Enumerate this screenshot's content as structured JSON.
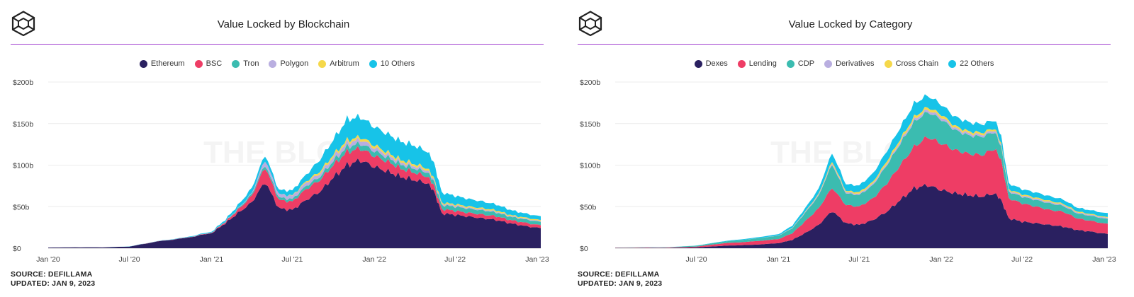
{
  "panels": [
    {
      "title": "Value Locked by Blockchain",
      "watermark": "THE BLOCK",
      "source": "SOURCE: DEFILLAMA",
      "updated": "UPDATED: JAN 9, 2023",
      "logo_icon": "the-block-cube-icon",
      "chart_data": {
        "type": "area",
        "stacked": true,
        "title": "Value Locked by Blockchain",
        "ylabel": "",
        "xlabel": "",
        "ylim": [
          0,
          200
        ],
        "y_ticks": [
          "$0",
          "$50b",
          "$100b",
          "$150b",
          "$200b"
        ],
        "y_tick_values": [
          0,
          50,
          100,
          150,
          200
        ],
        "x_range": [
          "2020-01-01",
          "2023-01-09"
        ],
        "x_ticks": [
          "Jan '20",
          "Jul '20",
          "Jan '21",
          "Jul '21",
          "Jan '22",
          "Jul '22",
          "Jan '23"
        ],
        "x_tick_dates": [
          "2020-01-01",
          "2020-07-01",
          "2021-01-01",
          "2021-07-01",
          "2022-01-01",
          "2022-07-01",
          "2023-01-01"
        ],
        "grid": true,
        "legend_position": "top-center",
        "x": [
          "2020-01-01",
          "2020-03-01",
          "2020-05-01",
          "2020-07-01",
          "2020-09-01",
          "2020-11-01",
          "2021-01-01",
          "2021-02-01",
          "2021-03-01",
          "2021-04-01",
          "2021-05-01",
          "2021-06-01",
          "2021-07-01",
          "2021-08-01",
          "2021-09-01",
          "2021-10-01",
          "2021-11-01",
          "2021-12-01",
          "2022-01-01",
          "2022-02-01",
          "2022-03-01",
          "2022-04-01",
          "2022-05-01",
          "2022-05-15",
          "2022-06-01",
          "2022-07-01",
          "2022-08-01",
          "2022-09-01",
          "2022-10-01",
          "2022-11-01",
          "2022-12-01",
          "2023-01-09"
        ],
        "series": [
          {
            "name": "Ethereum",
            "color": "#2a2060",
            "values": [
              0.8,
              1,
              1,
              2,
              8,
              12,
              18,
              30,
              42,
              55,
              80,
              48,
              46,
              58,
              68,
              85,
              100,
              106,
              98,
              92,
              86,
              82,
              78,
              68,
              42,
              40,
              38,
              36,
              34,
              30,
              27,
              24
            ]
          },
          {
            "name": "BSC",
            "color": "#ee3d65",
            "values": [
              0,
              0,
              0,
              0,
              0.2,
              0.3,
              0.5,
              1.5,
              4,
              8,
              18,
              10,
              10,
              13,
              14,
              15,
              16,
              14,
              13,
              12,
              10,
              9,
              8,
              7,
              5,
              5,
              4.5,
              4.5,
              4.5,
              4,
              4,
              3.5
            ]
          },
          {
            "name": "Tron",
            "color": "#3bbcb0",
            "values": [
              0,
              0,
              0,
              0,
              0,
              0,
              0.2,
              0.5,
              1,
              2,
              3,
              3,
              3,
              4,
              4,
              5,
              6,
              6,
              6,
              5,
              5,
              5,
              5,
              5,
              5,
              5,
              5,
              5,
              4.5,
              4,
              4,
              4
            ]
          },
          {
            "name": "Polygon",
            "color": "#b9aee0",
            "values": [
              0,
              0,
              0,
              0,
              0,
              0,
              0.1,
              0.3,
              0.5,
              1,
              6,
              4,
              4,
              4,
              4,
              5,
              5,
              5,
              4,
              3.5,
              3,
              3,
              2.5,
              2,
              1.5,
              1.5,
              1.2,
              1.2,
              1.2,
              1,
              1,
              1
            ]
          },
          {
            "name": "Arbitrum",
            "color": "#f5d84a",
            "values": [
              0,
              0,
              0,
              0,
              0,
              0,
              0,
              0,
              0,
              0,
              0,
              0,
              0.5,
              1.5,
              2.5,
              2.5,
              3,
              3,
              3,
              2.5,
              2.5,
              2.5,
              2.5,
              2,
              1.5,
              1.5,
              1.5,
              1.5,
              1.5,
              1.2,
              1.2,
              1.2
            ]
          },
          {
            "name": "10 Others",
            "color": "#17c3e8",
            "values": [
              0,
              0,
              0,
              0.1,
              0.3,
              0.5,
              1,
              2,
              4,
              6,
              6,
              5,
              6,
              8,
              14,
              18,
              25,
              24,
              22,
              22,
              22,
              22,
              20,
              18,
              12,
              10,
              9,
              8,
              7,
              6,
              5,
              4.5
            ]
          }
        ]
      }
    },
    {
      "title": "Value Locked by Category",
      "watermark": "THE BLOCK",
      "source": "SOURCE: DEFILLAMA",
      "updated": "UPDATED: JAN 9, 2023",
      "logo_icon": "the-block-cube-icon",
      "chart_data": {
        "type": "area",
        "stacked": true,
        "title": "Value Locked by Category",
        "ylabel": "",
        "xlabel": "",
        "ylim": [
          0,
          200
        ],
        "y_ticks": [
          "$0",
          "$50b",
          "$100b",
          "$150b",
          "$200b"
        ],
        "y_tick_values": [
          0,
          50,
          100,
          150,
          200
        ],
        "x_range": [
          "2020-01-01",
          "2023-01-09"
        ],
        "x_ticks": [
          "Jul '20",
          "Jan '21",
          "Jul '21",
          "Jan '22",
          "Jul '22",
          "Jan '23"
        ],
        "x_tick_dates": [
          "2020-07-01",
          "2021-01-01",
          "2021-07-01",
          "2022-01-01",
          "2022-07-01",
          "2023-01-01"
        ],
        "grid": true,
        "legend_position": "top-center",
        "x": [
          "2020-01-01",
          "2020-03-01",
          "2020-05-01",
          "2020-07-01",
          "2020-09-01",
          "2020-11-01",
          "2021-01-01",
          "2021-02-01",
          "2021-03-01",
          "2021-04-01",
          "2021-05-01",
          "2021-06-01",
          "2021-07-01",
          "2021-08-01",
          "2021-09-01",
          "2021-10-01",
          "2021-11-01",
          "2021-12-01",
          "2022-01-01",
          "2022-02-01",
          "2022-03-01",
          "2022-04-01",
          "2022-05-01",
          "2022-05-15",
          "2022-06-01",
          "2022-07-01",
          "2022-08-01",
          "2022-09-01",
          "2022-10-01",
          "2022-11-01",
          "2022-12-01",
          "2023-01-09"
        ],
        "series": [
          {
            "name": "Dexes",
            "color": "#2a2060",
            "values": [
              0.3,
              0.3,
              0.3,
              1,
              3,
              4,
              6,
              10,
              18,
              28,
              45,
              30,
              28,
              34,
              44,
              58,
              72,
              76,
              70,
              66,
              64,
              62,
              66,
              58,
              36,
              32,
              30,
              28,
              26,
              22,
              20,
              17
            ]
          },
          {
            "name": "Lending",
            "color": "#ee3d65",
            "values": [
              0.3,
              0.5,
              0.5,
              1,
              3,
              4,
              5,
              8,
              14,
              20,
              28,
              22,
              22,
              26,
              34,
              42,
              50,
              58,
              56,
              52,
              50,
              50,
              54,
              48,
              24,
              22,
              20,
              18,
              18,
              14,
              13,
              12
            ]
          },
          {
            "name": "CDP",
            "color": "#3bbcb0",
            "values": [
              0.2,
              0.3,
              0.4,
              1,
              2,
              3,
              4,
              6,
              10,
              15,
              28,
              14,
              14,
              16,
              22,
              26,
              30,
              30,
              29,
              24,
              22,
              22,
              20,
              16,
              8,
              8,
              8,
              8,
              7,
              6,
              6,
              6
            ]
          },
          {
            "name": "Derivatives",
            "color": "#b9aee0",
            "values": [
              0,
              0,
              0,
              0,
              0,
              0.1,
              0.3,
              0.5,
              1,
              1.5,
              2,
              1.5,
              1.5,
              2,
              2,
              2.5,
              3,
              3,
              3,
              2.5,
              2.5,
              2.5,
              2.5,
              2,
              1.5,
              1.5,
              1.5,
              1.5,
              1.5,
              1.2,
              1.2,
              1.2
            ]
          },
          {
            "name": "Cross Chain",
            "color": "#f5d84a",
            "values": [
              0,
              0,
              0,
              0,
              0,
              0,
              0,
              0.2,
              0.5,
              1,
              2,
              1.5,
              2,
              2,
              3,
              3,
              3,
              3,
              3,
              2.5,
              2.5,
              2.5,
              2,
              2,
              1.5,
              1.5,
              1.5,
              1.5,
              1.2,
              1.2,
              1,
              1
            ]
          },
          {
            "name": "22 Others",
            "color": "#17c3e8",
            "values": [
              0,
              0.1,
              0.1,
              0.2,
              0.5,
              1,
              1.5,
              2.5,
              4,
              6,
              10,
              8,
              8,
              10,
              12,
              14,
              16,
              14,
              12,
              11,
              11,
              10,
              10,
              9,
              7,
              6,
              6,
              5.5,
              5,
              4.5,
              4.5,
              4.5
            ]
          }
        ]
      }
    }
  ]
}
